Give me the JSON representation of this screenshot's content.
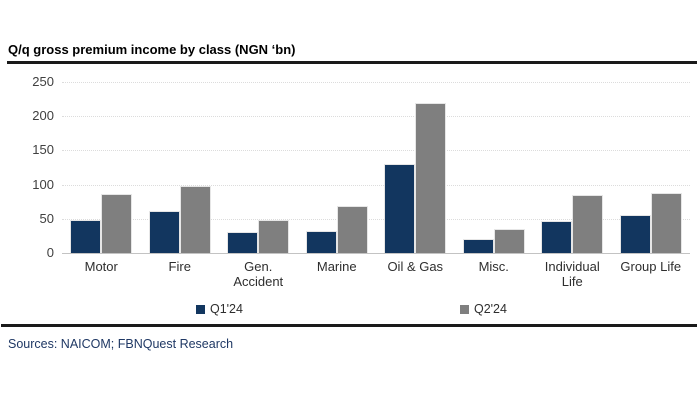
{
  "chart": {
    "title": "Q/q gross premium income by class (NGN ‘bn)",
    "source_note": "Sources: NAICOM; FBNQuest Research"
  },
  "chart_data": {
    "type": "bar",
    "title": "Q/q gross premium income by class (NGN ‘bn)",
    "categories": [
      "Motor",
      "Fire",
      "Gen. Accident",
      "Marine",
      "Oil & Gas",
      "Misc.",
      "Individual Life",
      "Group Life"
    ],
    "series": [
      {
        "name": "Q1'24",
        "color": "#12365F",
        "values": [
          48,
          61,
          31,
          32,
          130,
          20,
          47,
          55
        ]
      },
      {
        "name": "Q2'24",
        "color": "#7F7F7F",
        "values": [
          86,
          98,
          48,
          69,
          219,
          35,
          85,
          88
        ]
      }
    ],
    "xlabel": "",
    "ylabel": "",
    "ylim": [
      0,
      250
    ],
    "yticks": [
      0,
      50,
      100,
      150,
      200,
      250
    ],
    "grid": "horizontal-dotted",
    "legend_position": "bottom"
  },
  "colors": {
    "q1_bar": "#12365F",
    "q2_bar": "#7F7F7F",
    "rule": "#1a1a1a",
    "gridline": "#dcdcdc",
    "tick_text": "#404040",
    "source_text": "#1F3864"
  }
}
